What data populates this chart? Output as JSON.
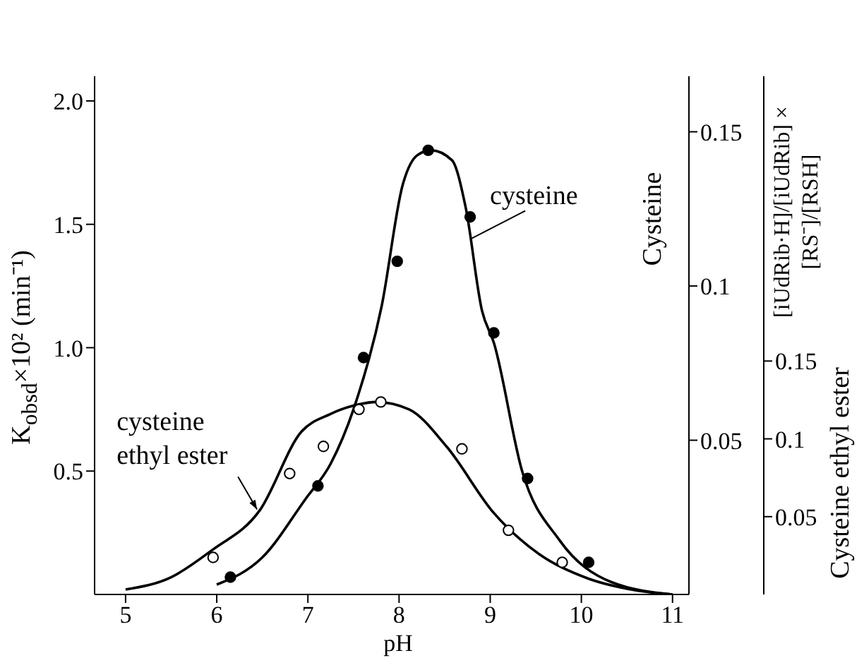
{
  "chart_data": {
    "type": "scatter",
    "xlabel": "pH",
    "ylabel": "K$_{obsd}$×10² (min⁻¹)",
    "y2label": "Cysteine",
    "y3label": "Cysteine ethyl ester",
    "xlim": [
      4.66,
      11.18
    ],
    "xticks": [
      5,
      6,
      7,
      8,
      9,
      10,
      11
    ],
    "ylim": [
      0,
      2.1
    ],
    "yticks": [
      {
        "value": 0.5,
        "label": "0.5"
      },
      {
        "value": 1,
        "label": "1.0"
      },
      {
        "value": 1.5,
        "label": "1.5"
      },
      {
        "value": 2,
        "label": "2.0"
      }
    ],
    "y2lim": [
      0,
      0.168
    ],
    "y2ticks": [
      0.05,
      0.1,
      0.15
    ],
    "y3lim": [
      0,
      0.333
    ],
    "y3ticks": [
      0.05,
      0.1,
      0.15
    ],
    "marker": "circle",
    "series": [
      {
        "type": "scatter",
        "color": "#000000",
        "x": [
          6.15,
          7.11,
          7.61,
          7.98,
          8.32,
          8.78,
          9.04,
          9.41,
          10.08
        ],
        "values": [
          0.07,
          0.44,
          0.96,
          1.35,
          1.8,
          1.53,
          1.06,
          0.47,
          0.13
        ]
      },
      {
        "type": "scatter",
        "color": "#ffffff",
        "x": [
          5.96,
          6.8,
          7.17,
          7.56,
          7.8,
          8.69,
          9.2,
          9.79
        ],
        "values": [
          0.15,
          0.49,
          0.6,
          0.75,
          0.78,
          0.59,
          0.26,
          0.13
        ]
      },
      {
        "type": "line",
        "color": "#000000",
        "marker": "none",
        "x": [
          6.0,
          6.5,
          6.98,
          7.25,
          7.5,
          7.81,
          8.04,
          8.2,
          8.35,
          8.58,
          8.73,
          8.91,
          9.04,
          9.35,
          9.76,
          10.33,
          11.0
        ],
        "values": [
          0.04,
          0.15,
          0.39,
          0.53,
          0.75,
          1.17,
          1.66,
          1.78,
          1.8,
          1.76,
          1.57,
          1.15,
          1.02,
          0.5,
          0.22,
          0.05,
          0.0
        ]
      },
      {
        "type": "line",
        "color": "#000000",
        "marker": "none",
        "x": [
          5.0,
          5.5,
          5.95,
          6.47,
          6.93,
          7.24,
          7.5,
          7.75,
          8.11,
          8.52,
          9.04,
          9.55,
          10.07,
          10.58,
          11.0
        ],
        "values": [
          0.02,
          0.07,
          0.18,
          0.34,
          0.66,
          0.73,
          0.765,
          0.78,
          0.75,
          0.6,
          0.33,
          0.16,
          0.065,
          0.018,
          0.0
        ]
      }
    ],
    "annotations": [
      {
        "text": "cysteine",
        "x": 8.78,
        "y": 1.44
      },
      {
        "text": "cysteine ethyl ester",
        "x": 6.45,
        "y": 0.34
      },
      "[iUdRib·H]/[iUdRib] × [RS⁻]/[RSH]"
    ]
  }
}
